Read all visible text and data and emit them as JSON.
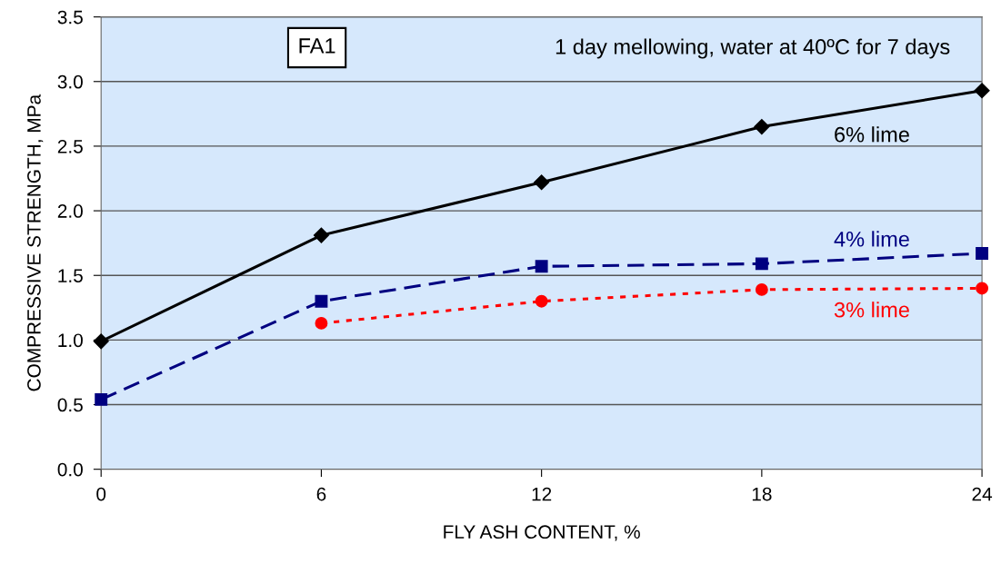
{
  "chart_data": {
    "type": "line",
    "xlabel": "FLY ASH CONTENT, %",
    "ylabel": "COMPRESSIVE STRENGTH, MPa",
    "x": [
      0,
      6,
      12,
      18,
      24
    ],
    "series": [
      {
        "name": "6% lime",
        "color": "#000000",
        "marker": "diamond",
        "line_style": "solid",
        "values": [
          0.99,
          1.81,
          2.22,
          2.65,
          2.93
        ]
      },
      {
        "name": "4% lime",
        "color": "#000080",
        "marker": "square",
        "line_style": "dashed",
        "values": [
          0.54,
          1.3,
          1.57,
          1.59,
          1.67
        ]
      },
      {
        "name": "3% lime",
        "color": "#ff0000",
        "marker": "circle",
        "line_style": "dotted",
        "values": [
          null,
          1.13,
          1.3,
          1.39,
          1.4
        ]
      }
    ],
    "xlim": [
      0,
      24
    ],
    "xticks": [
      0,
      6,
      12,
      18,
      24
    ],
    "ylim": [
      0,
      3.5
    ],
    "yticks": [
      {
        "value": 0,
        "label": "0.0"
      },
      {
        "value": 0.5,
        "label": "0.5"
      },
      {
        "value": 1,
        "label": "1.0"
      },
      {
        "value": 1.5,
        "label": "1.5"
      },
      {
        "value": 2,
        "label": "2.0"
      },
      {
        "value": 2.5,
        "label": "2.5"
      },
      {
        "value": 3,
        "label": "3.0"
      },
      {
        "value": 3.5,
        "label": "3.5"
      }
    ],
    "grid": "y",
    "annotations": [
      "FA1",
      "1 day mellowing, water at 40ºC for 7 days"
    ]
  }
}
